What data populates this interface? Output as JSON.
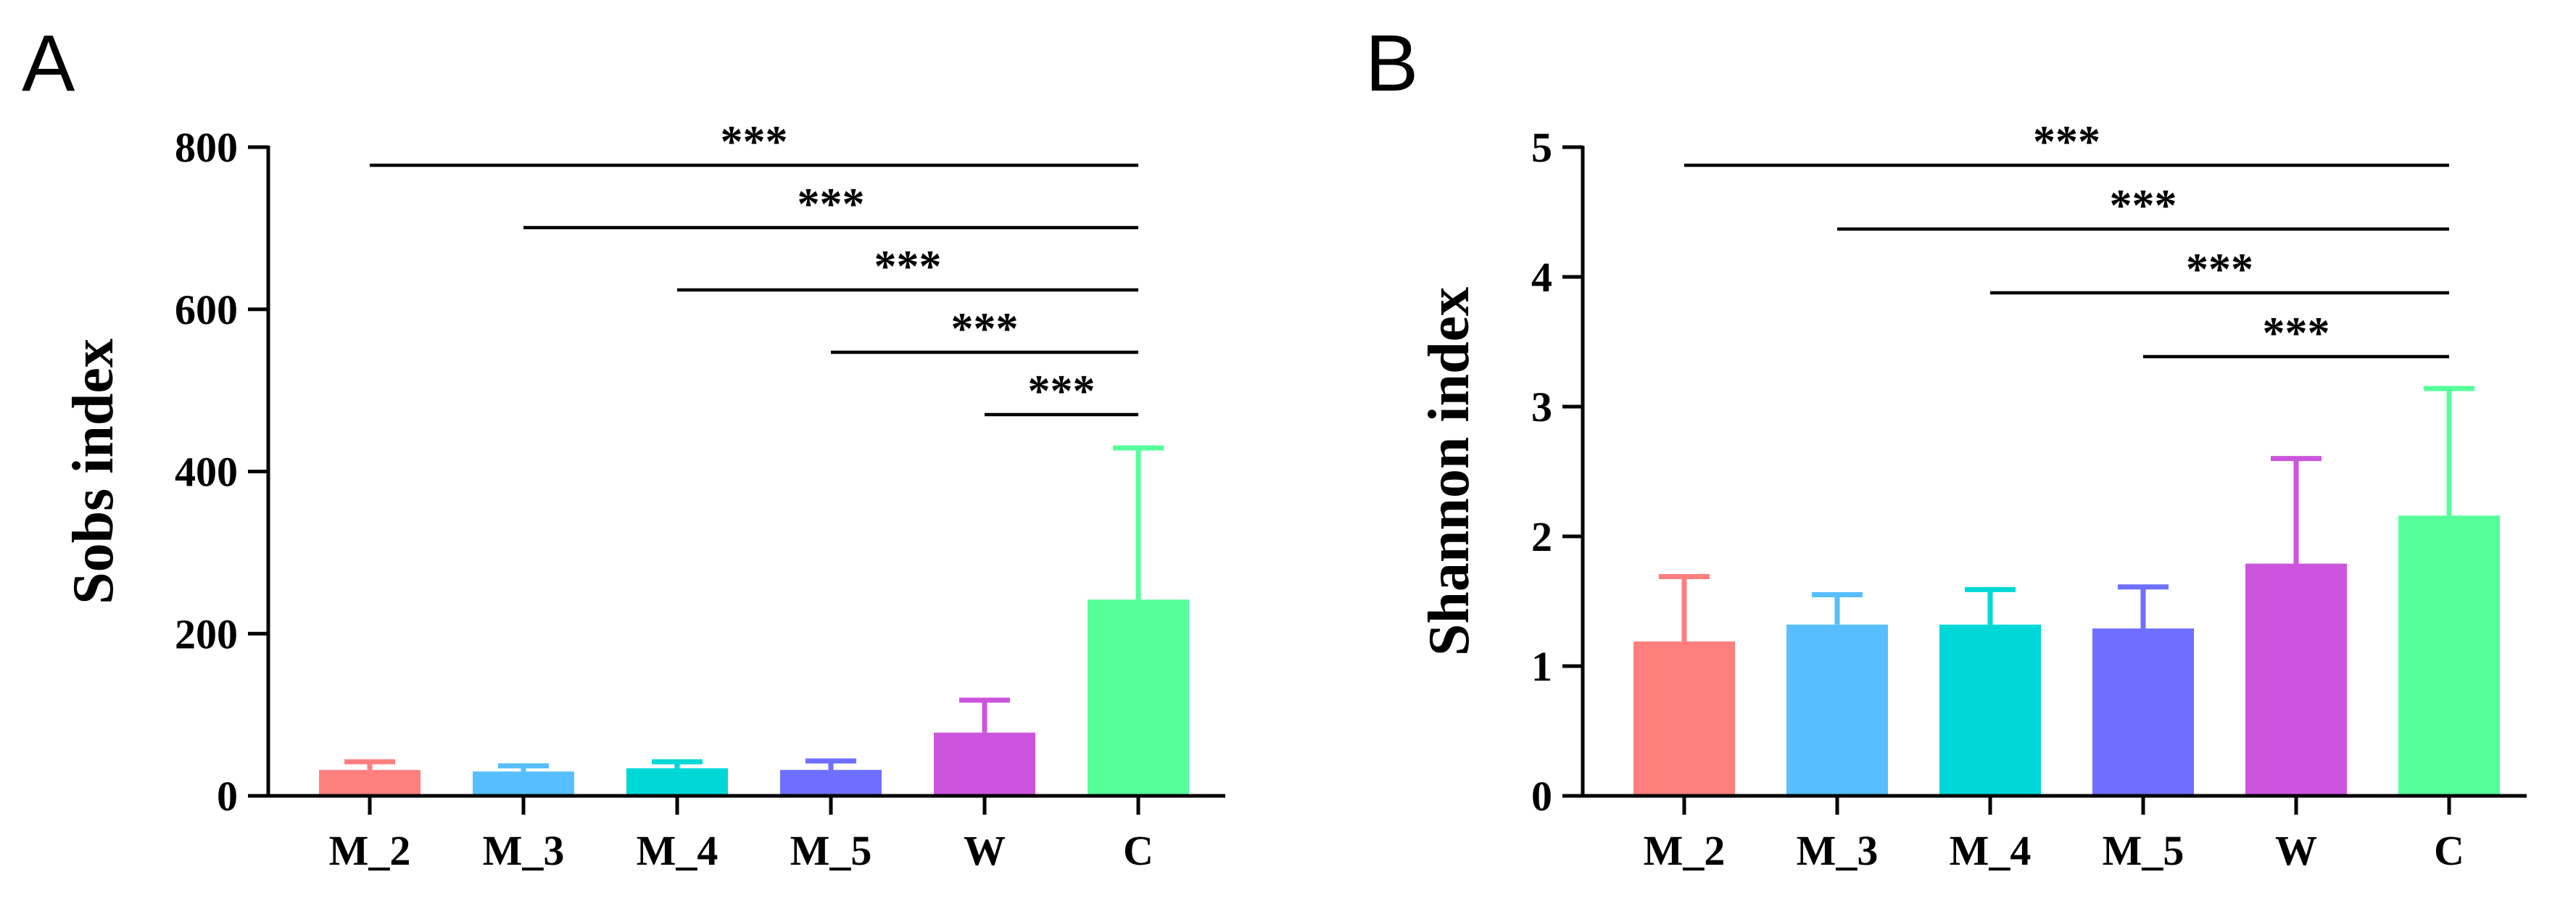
{
  "chart_data": [
    {
      "panel_label": "A",
      "type": "bar",
      "ylabel": "Sobs index",
      "xlabel": "",
      "ylim": [
        0,
        800
      ],
      "yticks": [
        0,
        200,
        400,
        600,
        800
      ],
      "ytick_labels": [
        "0",
        "200",
        "400",
        "600",
        "800"
      ],
      "categories": [
        "M_2",
        "M_3",
        "M_4",
        "M_5",
        "W",
        "C"
      ],
      "values": [
        32,
        30,
        34,
        32,
        78,
        242
      ],
      "errors": [
        10,
        7,
        8,
        11,
        40,
        187
      ],
      "colors": [
        "#FF7F7F",
        "#57BFFF",
        "#00D8D8",
        "#6F6FFF",
        "#CC55DD",
        "#55FF99"
      ],
      "significance": [
        {
          "from": "M_2",
          "to": "C",
          "label": "***"
        },
        {
          "from": "M_3",
          "to": "C",
          "label": "***"
        },
        {
          "from": "M_4",
          "to": "C",
          "label": "***"
        },
        {
          "from": "M_5",
          "to": "C",
          "label": "***"
        },
        {
          "from": "W",
          "to": "C",
          "label": "***"
        }
      ]
    },
    {
      "panel_label": "B",
      "type": "bar",
      "ylabel": "Shannon index",
      "xlabel": "",
      "ylim": [
        0,
        5
      ],
      "yticks": [
        0,
        1,
        2,
        3,
        4,
        5
      ],
      "ytick_labels": [
        "0",
        "1",
        "2",
        "3",
        "4",
        "5"
      ],
      "categories": [
        "M_2",
        "M_3",
        "M_4",
        "M_5",
        "W",
        "C"
      ],
      "values": [
        1.19,
        1.32,
        1.32,
        1.29,
        1.79,
        2.16
      ],
      "errors": [
        0.5,
        0.23,
        0.27,
        0.32,
        0.81,
        0.98
      ],
      "colors": [
        "#FF7F7F",
        "#57BFFF",
        "#00D8D8",
        "#6F6FFF",
        "#CC55DD",
        "#55FF99"
      ],
      "significance": [
        {
          "from": "M_2",
          "to": "C",
          "label": "***"
        },
        {
          "from": "M_3",
          "to": "C",
          "label": "***"
        },
        {
          "from": "M_4",
          "to": "C",
          "label": "***"
        },
        {
          "from": "M_5",
          "to": "C",
          "label": "***"
        }
      ]
    }
  ]
}
